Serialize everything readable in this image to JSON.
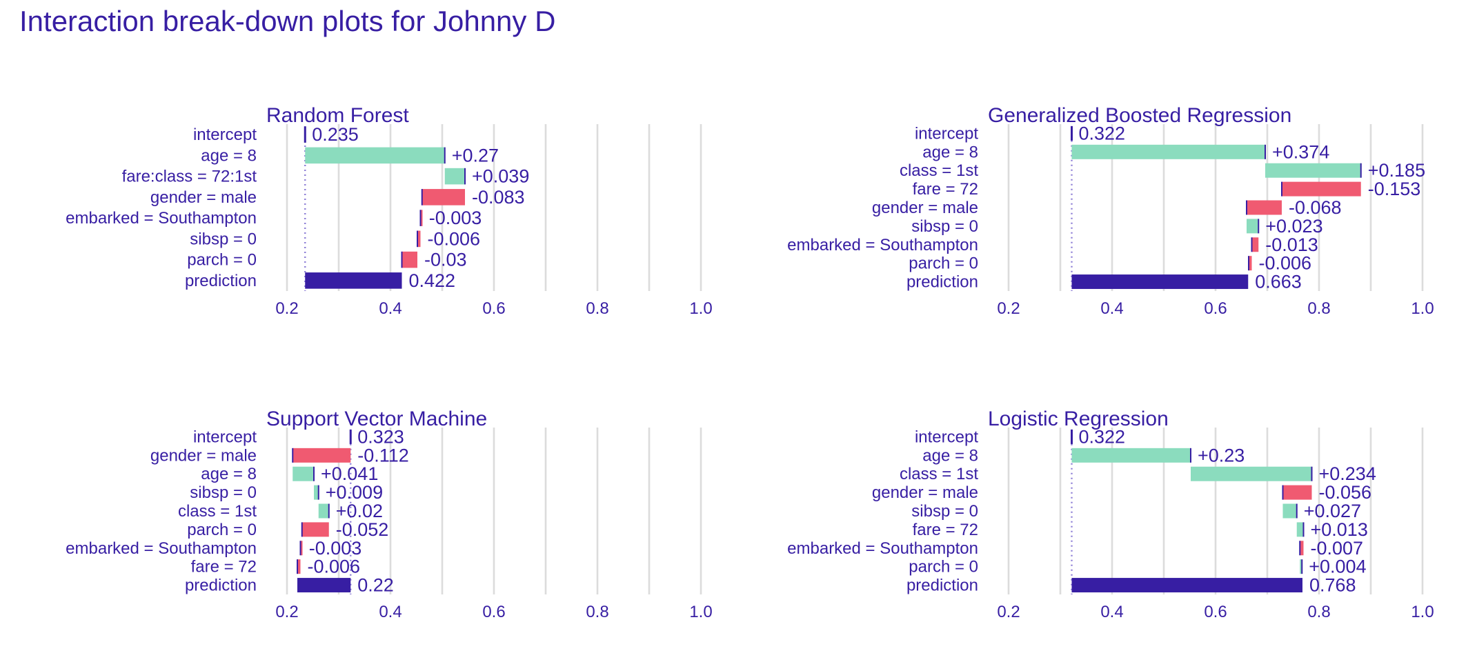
{
  "title": "Interaction break-down plots for Johnny D",
  "colors": {
    "positive": "#8bdcbe",
    "negative": "#f05a71",
    "prediction": "#371ea3",
    "text": "#371ea3",
    "grid": "#dcdcdc"
  },
  "chart_data": [
    {
      "type": "bar",
      "subtype": "waterfall",
      "title": "Random Forest",
      "xlim": [
        0.2,
        1.0
      ],
      "xticks": [
        "0.2",
        "0.4",
        "0.6",
        "0.8",
        "1.0"
      ],
      "xtick_values": [
        0.2,
        0.4,
        0.6,
        0.8,
        1.0
      ],
      "intercept": 0.235,
      "rows": [
        {
          "variable": "intercept",
          "contribution": 0.235,
          "label": "0.235",
          "kind": "intercept"
        },
        {
          "variable": "age = 8",
          "contribution": 0.27,
          "label": "+0.27",
          "kind": "positive"
        },
        {
          "variable": "fare:class = 72:1st",
          "contribution": 0.039,
          "label": "+0.039",
          "kind": "positive"
        },
        {
          "variable": "gender = male",
          "contribution": -0.083,
          "label": "-0.083",
          "kind": "negative"
        },
        {
          "variable": "embarked = Southampton",
          "contribution": -0.003,
          "label": "-0.003",
          "kind": "negative"
        },
        {
          "variable": "sibsp = 0",
          "contribution": -0.006,
          "label": "-0.006",
          "kind": "negative"
        },
        {
          "variable": "parch = 0",
          "contribution": -0.03,
          "label": "-0.03",
          "kind": "negative"
        },
        {
          "variable": "prediction",
          "contribution": 0.422,
          "label": "0.422",
          "kind": "prediction"
        }
      ],
      "grid": true
    },
    {
      "type": "bar",
      "subtype": "waterfall",
      "title": "Generalized Boosted Regression",
      "xlim": [
        0.2,
        1.0
      ],
      "xticks": [
        "0.2",
        "0.4",
        "0.6",
        "0.8",
        "1.0"
      ],
      "xtick_values": [
        0.2,
        0.4,
        0.6,
        0.8,
        1.0
      ],
      "intercept": 0.322,
      "rows": [
        {
          "variable": "intercept",
          "contribution": 0.322,
          "label": "0.322",
          "kind": "intercept"
        },
        {
          "variable": "age = 8",
          "contribution": 0.374,
          "label": "+0.374",
          "kind": "positive"
        },
        {
          "variable": "class = 1st",
          "contribution": 0.185,
          "label": "+0.185",
          "kind": "positive"
        },
        {
          "variable": "fare = 72",
          "contribution": -0.153,
          "label": "-0.153",
          "kind": "negative"
        },
        {
          "variable": "gender = male",
          "contribution": -0.068,
          "label": "-0.068",
          "kind": "negative"
        },
        {
          "variable": "sibsp = 0",
          "contribution": 0.023,
          "label": "+0.023",
          "kind": "positive"
        },
        {
          "variable": "embarked = Southampton",
          "contribution": -0.013,
          "label": "-0.013",
          "kind": "negative"
        },
        {
          "variable": "parch = 0",
          "contribution": -0.006,
          "label": "-0.006",
          "kind": "negative"
        },
        {
          "variable": "prediction",
          "contribution": 0.663,
          "label": "0.663",
          "kind": "prediction"
        }
      ],
      "grid": true
    },
    {
      "type": "bar",
      "subtype": "waterfall",
      "title": "Support Vector Machine",
      "xlim": [
        0.2,
        1.0
      ],
      "xticks": [
        "0.2",
        "0.4",
        "0.6",
        "0.8",
        "1.0"
      ],
      "xtick_values": [
        0.2,
        0.4,
        0.6,
        0.8,
        1.0
      ],
      "intercept": 0.323,
      "rows": [
        {
          "variable": "intercept",
          "contribution": 0.323,
          "label": "0.323",
          "kind": "intercept"
        },
        {
          "variable": "gender = male",
          "contribution": -0.112,
          "label": "-0.112",
          "kind": "negative"
        },
        {
          "variable": "age = 8",
          "contribution": 0.041,
          "label": "+0.041",
          "kind": "positive"
        },
        {
          "variable": "sibsp = 0",
          "contribution": 0.009,
          "label": "+0.009",
          "kind": "positive"
        },
        {
          "variable": "class = 1st",
          "contribution": 0.02,
          "label": "+0.02",
          "kind": "positive"
        },
        {
          "variable": "parch = 0",
          "contribution": -0.052,
          "label": "-0.052",
          "kind": "negative"
        },
        {
          "variable": "embarked = Southampton",
          "contribution": -0.003,
          "label": "-0.003",
          "kind": "negative"
        },
        {
          "variable": "fare = 72",
          "contribution": -0.006,
          "label": "-0.006",
          "kind": "negative"
        },
        {
          "variable": "prediction",
          "contribution": 0.22,
          "label": "0.22",
          "kind": "prediction"
        }
      ],
      "grid": true
    },
    {
      "type": "bar",
      "subtype": "waterfall",
      "title": "Logistic Regression",
      "xlim": [
        0.2,
        1.0
      ],
      "xticks": [
        "0.2",
        "0.4",
        "0.6",
        "0.8",
        "1.0"
      ],
      "xtick_values": [
        0.2,
        0.4,
        0.6,
        0.8,
        1.0
      ],
      "intercept": 0.322,
      "rows": [
        {
          "variable": "intercept",
          "contribution": 0.322,
          "label": "0.322",
          "kind": "intercept"
        },
        {
          "variable": "age = 8",
          "contribution": 0.23,
          "label": "+0.23",
          "kind": "positive"
        },
        {
          "variable": "class = 1st",
          "contribution": 0.234,
          "label": "+0.234",
          "kind": "positive"
        },
        {
          "variable": "gender = male",
          "contribution": -0.056,
          "label": "-0.056",
          "kind": "negative"
        },
        {
          "variable": "sibsp = 0",
          "contribution": 0.027,
          "label": "+0.027",
          "kind": "positive"
        },
        {
          "variable": "fare = 72",
          "contribution": 0.013,
          "label": "+0.013",
          "kind": "positive"
        },
        {
          "variable": "embarked = Southampton",
          "contribution": -0.007,
          "label": "-0.007",
          "kind": "negative"
        },
        {
          "variable": "parch = 0",
          "contribution": 0.004,
          "label": "+0.004",
          "kind": "positive"
        },
        {
          "variable": "prediction",
          "contribution": 0.768,
          "label": "0.768",
          "kind": "prediction"
        }
      ],
      "grid": true
    }
  ]
}
